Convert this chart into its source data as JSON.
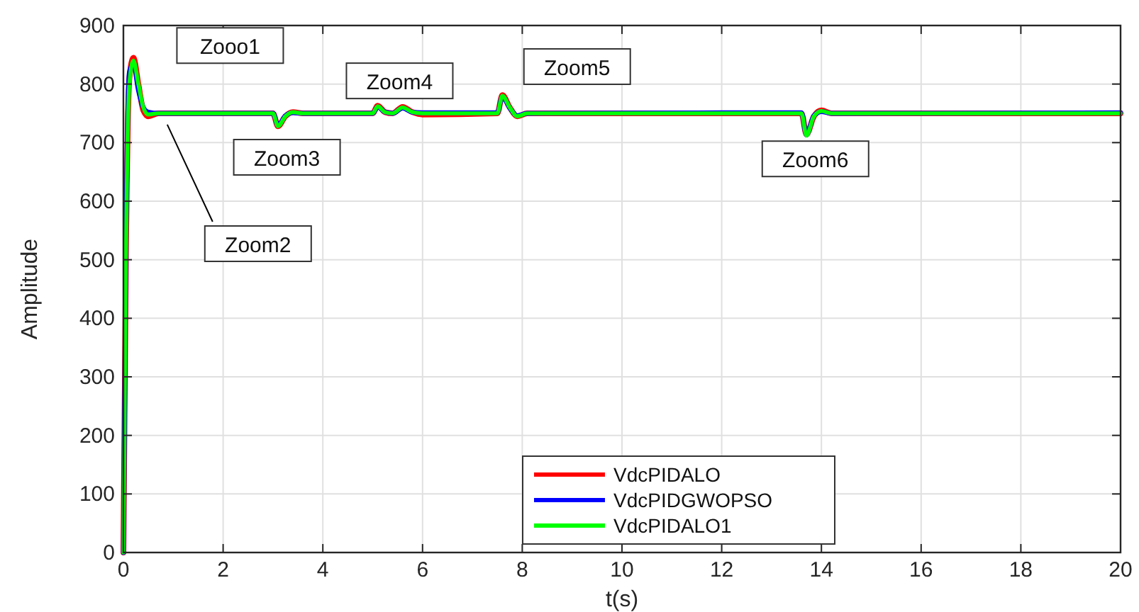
{
  "chart_data": {
    "type": "line",
    "xlabel": "t(s)",
    "ylabel": "Amplitude",
    "xlim": [
      0,
      20
    ],
    "xticks": [
      0,
      2,
      4,
      6,
      8,
      10,
      12,
      14,
      16,
      18,
      20
    ],
    "ylim": [
      0,
      900
    ],
    "yticks": [
      0,
      100,
      200,
      300,
      400,
      500,
      600,
      700,
      800,
      900
    ],
    "grid": true,
    "legend": "bottom",
    "line_style": "solid",
    "marker": "none",
    "annotations": [
      "Zooo1",
      "Zoom2",
      "Zoom3",
      "Zoom4",
      "Zoom5",
      "Zoom6"
    ],
    "series": [
      {
        "name": "VdcPIDALO",
        "color": "#ff0000",
        "x": [
          0,
          0.05,
          0.12,
          0.2,
          0.3,
          0.4,
          0.5,
          0.7,
          3.0,
          3.1,
          3.25,
          3.4,
          3.6,
          5.0,
          5.1,
          5.25,
          5.4,
          5.6,
          5.8,
          6.0,
          7.5,
          7.6,
          7.75,
          7.9,
          8.1,
          13.6,
          13.7,
          13.85,
          14.0,
          14.2,
          20
        ],
        "values": [
          0,
          500,
          810,
          845,
          800,
          755,
          745,
          750,
          750,
          728,
          745,
          752,
          750,
          750,
          763,
          752,
          750,
          761,
          752,
          748,
          750,
          781,
          760,
          745,
          750,
          750,
          714,
          745,
          755,
          750,
          750
        ]
      },
      {
        "name": "VdcPIDGWOPSO",
        "color": "#0000ff",
        "x": [
          0,
          0.05,
          0.12,
          0.2,
          0.3,
          0.4,
          0.5,
          0.7,
          3.0,
          3.1,
          3.25,
          3.4,
          3.6,
          5.0,
          5.1,
          5.25,
          5.4,
          5.6,
          5.8,
          6.0,
          7.5,
          7.6,
          7.75,
          7.9,
          8.1,
          13.6,
          13.7,
          13.85,
          14.0,
          14.2,
          20
        ],
        "values": [
          0,
          520,
          820,
          835,
          790,
          760,
          752,
          750,
          750,
          729,
          746,
          751,
          750,
          750,
          761,
          752,
          750,
          759,
          752,
          751,
          751,
          779,
          759,
          746,
          750,
          751,
          713,
          746,
          753,
          750,
          751
        ]
      },
      {
        "name": "VdcPIDALO1",
        "color": "#00ff00",
        "x": [
          0,
          0.05,
          0.12,
          0.2,
          0.3,
          0.4,
          0.5,
          0.7,
          3.0,
          3.1,
          3.25,
          3.4,
          3.6,
          5.0,
          5.1,
          5.25,
          5.4,
          5.6,
          5.8,
          6.0,
          7.5,
          7.6,
          7.75,
          7.9,
          8.1,
          13.6,
          13.7,
          13.85,
          14.0,
          14.2,
          20
        ],
        "values": [
          0,
          500,
          800,
          840,
          800,
          760,
          748,
          750,
          750,
          728,
          745,
          752,
          750,
          750,
          762,
          752,
          750,
          760,
          752,
          750,
          750,
          780,
          760,
          745,
          750,
          750,
          712,
          745,
          754,
          750,
          750
        ]
      }
    ]
  }
}
